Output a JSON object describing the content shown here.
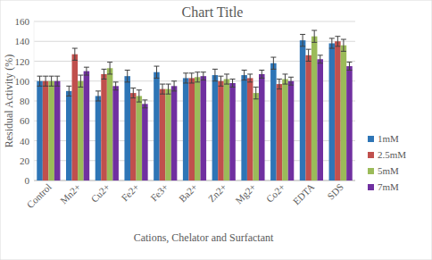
{
  "chart_data": {
    "type": "bar",
    "title": "Chart Title",
    "x_label": "Cations, Chelator and Surfactant",
    "y_label": "Residual Activity (%)",
    "categories": [
      "Control",
      "Mn2+",
      "Cu2+",
      "Fe2+",
      "Fe3+",
      "Ba2+",
      "Zn2+",
      "Mg2+",
      "Co2+",
      "EDTA",
      "SDS"
    ],
    "series": [
      {
        "name": "1mM",
        "color": "#2e75b6",
        "values": [
          100,
          90,
          85,
          105,
          109,
          103,
          106,
          106,
          118,
          141,
          138
        ],
        "errors": [
          5,
          5,
          5,
          6,
          6,
          5,
          6,
          5,
          6,
          6,
          5
        ]
      },
      {
        "name": "2.5mM",
        "color": "#c0504d",
        "values": [
          100,
          127,
          107,
          88,
          92,
          103,
          100,
          103,
          97,
          126,
          140
        ],
        "errors": [
          5,
          6,
          5,
          5,
          5,
          5,
          5,
          4,
          5,
          6,
          5
        ]
      },
      {
        "name": "5mM",
        "color": "#9bbb59",
        "values": [
          100,
          100,
          113,
          85,
          92,
          104,
          102,
          88,
          102,
          145,
          136
        ],
        "errors": [
          5,
          6,
          6,
          6,
          5,
          5,
          5,
          6,
          5,
          6,
          6
        ]
      },
      {
        "name": "7mM",
        "color": "#7030a0",
        "values": [
          100,
          110,
          95,
          77,
          95,
          105,
          98,
          107,
          100,
          122,
          115
        ],
        "errors": [
          5,
          4,
          4,
          4,
          5,
          4,
          4,
          4,
          4,
          4,
          4
        ]
      }
    ],
    "ylim": [
      0,
      160
    ],
    "yticks": [
      0,
      20,
      40,
      60,
      80,
      100,
      120,
      140,
      160
    ],
    "grid": true,
    "legend": "right"
  }
}
